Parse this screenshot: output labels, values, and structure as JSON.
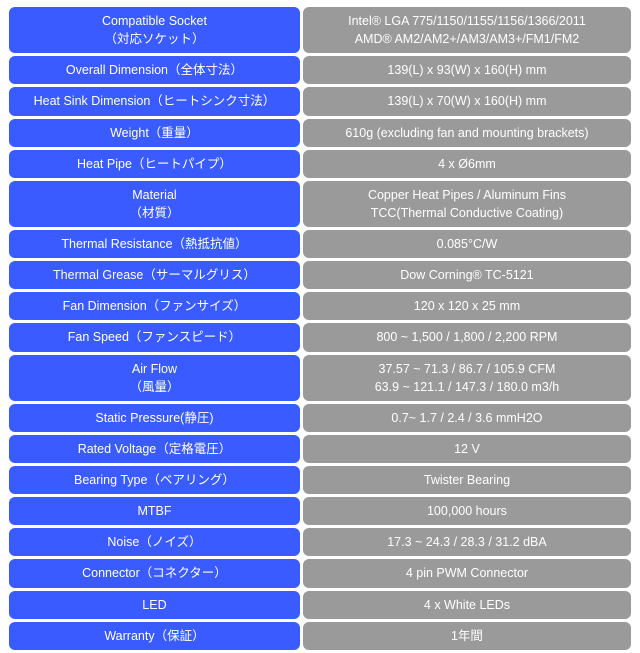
{
  "colors": {
    "label_bg": "#3a5bff",
    "value_bg": "#9a9a9a",
    "text": "#ffffff",
    "page_bg": "#ffffff"
  },
  "rows": [
    {
      "label": [
        "Compatible Socket",
        "（対応ソケット）"
      ],
      "value": [
        "Intel® LGA 775/1150/1155/1156/1366/2011",
        "AMD® AM2/AM2+/AM3/AM3+/FM1/FM2"
      ]
    },
    {
      "label": [
        "Overall Dimension（全体寸法）"
      ],
      "value": [
        "139(L) x 93(W) x 160(H) mm"
      ]
    },
    {
      "label": [
        "Heat Sink Dimension（ヒートシンク寸法）"
      ],
      "value": [
        "139(L) x 70(W) x 160(H) mm"
      ]
    },
    {
      "label": [
        "Weight（重量）"
      ],
      "value": [
        "610g (excluding fan and mounting brackets)"
      ]
    },
    {
      "label": [
        "Heat Pipe（ヒートパイプ）"
      ],
      "value": [
        "4 x Ø6mm"
      ]
    },
    {
      "label": [
        "Material",
        "（材質）"
      ],
      "value": [
        "Copper Heat Pipes / Aluminum Fins",
        "TCC(Thermal Conductive Coating)"
      ]
    },
    {
      "label": [
        "Thermal Resistance（熱抵抗値）"
      ],
      "value": [
        "0.085°C/W"
      ]
    },
    {
      "label": [
        "Thermal Grease（サーマルグリス）"
      ],
      "value": [
        "Dow Corning® TC-5121"
      ]
    },
    {
      "label": [
        "Fan Dimension（ファンサイズ）"
      ],
      "value": [
        "120 x 120 x 25 mm"
      ]
    },
    {
      "label": [
        "Fan Speed（ファンスピード）"
      ],
      "value": [
        "800 ~ 1,500 / 1,800 / 2,200 RPM"
      ]
    },
    {
      "label": [
        "Air Flow",
        "（風量）"
      ],
      "value": [
        "37.57 ~ 71.3 / 86.7 / 105.9 CFM",
        "63.9 ~ 121.1 / 147.3 / 180.0 m3/h"
      ]
    },
    {
      "label": [
        "Static Pressure(静圧)"
      ],
      "value": [
        "0.7~ 1.7 / 2.4 / 3.6 mmH2O"
      ]
    },
    {
      "label": [
        "Rated Voltage（定格電圧）"
      ],
      "value": [
        "12 V"
      ]
    },
    {
      "label": [
        "Bearing Type（ベアリング）"
      ],
      "value": [
        "Twister Bearing"
      ]
    },
    {
      "label": [
        "MTBF"
      ],
      "value": [
        "100,000 hours"
      ]
    },
    {
      "label": [
        "Noise（ノイズ）"
      ],
      "value": [
        "17.3 ~ 24.3 / 28.3 / 31.2 dBA"
      ]
    },
    {
      "label": [
        "Connector（コネクター）"
      ],
      "value": [
        "4 pin PWM Connector"
      ]
    },
    {
      "label": [
        "LED"
      ],
      "value": [
        "4 x White LEDs"
      ]
    },
    {
      "label": [
        "Warranty（保証）"
      ],
      "value": [
        "1年間"
      ]
    }
  ]
}
